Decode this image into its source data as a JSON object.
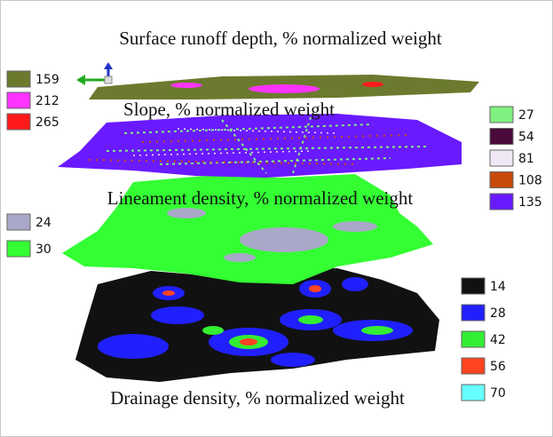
{
  "layers": [
    {
      "title": "Surface runoff depth, % normalized weight",
      "legend": [
        {
          "label": "159",
          "color": "#6b7a2e"
        },
        {
          "label": "212",
          "color": "#ff33ff"
        },
        {
          "label": "265",
          "color": "#ff1a1a"
        }
      ]
    },
    {
      "title": "Slope, % normalized weight",
      "legend": [
        {
          "label": "27",
          "color": "#80f080"
        },
        {
          "label": "54",
          "color": "#4a0a3a"
        },
        {
          "label": "81",
          "color": "#f0e8f5"
        },
        {
          "label": "108",
          "color": "#c84a0a"
        },
        {
          "label": "135",
          "color": "#6a1aff"
        }
      ]
    },
    {
      "title": "Lineament density, % normalized weight",
      "legend": [
        {
          "label": "24",
          "color": "#aaa8c8"
        },
        {
          "label": "30",
          "color": "#33ff33"
        }
      ]
    },
    {
      "title": "Drainage density, % normalized weight",
      "legend": [
        {
          "label": "14",
          "color": "#111111"
        },
        {
          "label": "28",
          "color": "#2020ff"
        },
        {
          "label": "42",
          "color": "#33ee33"
        },
        {
          "label": "56",
          "color": "#ff4422"
        },
        {
          "label": "70",
          "color": "#66ffff"
        }
      ]
    }
  ]
}
